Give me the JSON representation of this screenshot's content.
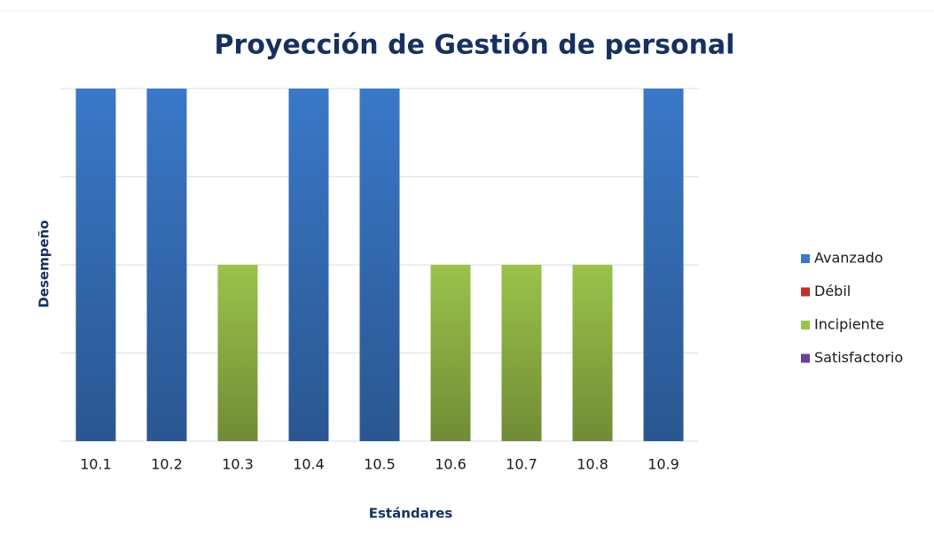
{
  "chart_data": {
    "type": "bar",
    "title": "Proyección de Gestión de personal",
    "x_label": "Estándares",
    "y_label": "Desempeño",
    "categories": [
      "10.1",
      "10.2",
      "10.3",
      "10.4",
      "10.5",
      "10.6",
      "10.7",
      "10.8",
      "10.9"
    ],
    "series": [
      {
        "name": "Avanzado",
        "color": "#3a78c8",
        "values": [
          4,
          4,
          null,
          4,
          4,
          null,
          null,
          null,
          4
        ]
      },
      {
        "name": "Débil",
        "color": "#c0302a",
        "values": [
          null,
          null,
          null,
          null,
          null,
          null,
          null,
          null,
          null
        ]
      },
      {
        "name": "Incipiente",
        "color": "#9bc24a",
        "values": [
          null,
          null,
          2,
          null,
          null,
          2,
          2,
          2,
          null
        ]
      },
      {
        "name": "Satisfactorio",
        "color": "#6a3f9a",
        "values": [
          null,
          null,
          null,
          null,
          null,
          null,
          null,
          null,
          null
        ]
      }
    ],
    "ylim": [
      0,
      4
    ],
    "yticks": [
      0,
      1,
      2,
      3,
      4
    ],
    "grid": true,
    "legend": "right"
  }
}
